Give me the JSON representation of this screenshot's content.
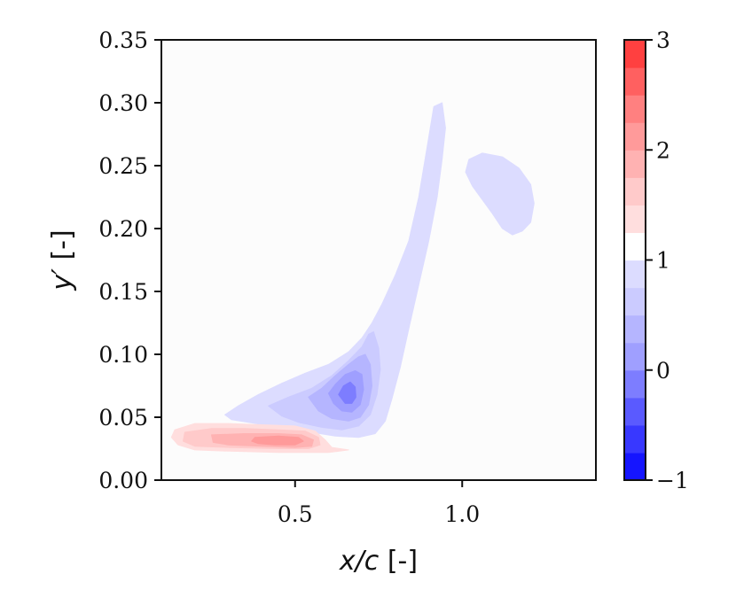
{
  "chart_data": {
    "type": "heatmap",
    "subtype": "filled-contour",
    "title": "",
    "xlabel_parts": [
      "x/c",
      " [-]"
    ],
    "ylabel_parts": [
      "y′",
      " [-]"
    ],
    "xlim": [
      0.1,
      1.4
    ],
    "ylim": [
      0.0,
      0.35
    ],
    "xticks": [
      0.5,
      1.0
    ],
    "xtick_labels": [
      "0.5",
      "1.0"
    ],
    "yticks": [
      0.0,
      0.05,
      0.1,
      0.15,
      0.2,
      0.25,
      0.3,
      0.35
    ],
    "ytick_labels": [
      "0.00",
      "0.05",
      "0.10",
      "0.15",
      "0.20",
      "0.25",
      "0.30",
      "0.35"
    ],
    "grid": false,
    "colormap": "bwr",
    "colorbar": {
      "range": [
        -1,
        3
      ],
      "ticks": [
        -1,
        0,
        1,
        2,
        3
      ],
      "tick_labels": [
        "−1",
        "0",
        "1",
        "2",
        "3"
      ],
      "levels": [
        -1.0,
        -0.75,
        -0.5,
        -0.25,
        0.0,
        0.25,
        0.5,
        0.75,
        1.0,
        1.25,
        1.5,
        1.75,
        2.0,
        2.25,
        2.5,
        2.75,
        3.0
      ],
      "colors": [
        "#1515ff",
        "#3838ff",
        "#5a5aff",
        "#7d7dff",
        "#9f9fff",
        "#b5b5ff",
        "#cbcbff",
        "#dcdcff",
        "#ffffff",
        "#ffdede",
        "#ffcaca",
        "#ffb2b2",
        "#ff9a9a",
        "#ff8080",
        "#ff6060",
        "#ff4040",
        "#ff1c1c"
      ]
    },
    "background_color": "#fcfcfc",
    "regions": [
      {
        "name": "low-region-main-level-1",
        "value_range": [
          0.75,
          1.0
        ],
        "color": "#dcdcff",
        "points": [
          [
            0.29,
            0.052
          ],
          [
            0.33,
            0.059
          ],
          [
            0.39,
            0.068
          ],
          [
            0.46,
            0.077
          ],
          [
            0.53,
            0.085
          ],
          [
            0.6,
            0.092
          ],
          [
            0.66,
            0.102
          ],
          [
            0.7,
            0.113
          ],
          [
            0.73,
            0.125
          ],
          [
            0.76,
            0.14
          ],
          [
            0.8,
            0.163
          ],
          [
            0.84,
            0.19
          ],
          [
            0.87,
            0.225
          ],
          [
            0.895,
            0.265
          ],
          [
            0.915,
            0.297
          ],
          [
            0.94,
            0.3
          ],
          [
            0.95,
            0.28
          ],
          [
            0.94,
            0.255
          ],
          [
            0.925,
            0.225
          ],
          [
            0.9,
            0.19
          ],
          [
            0.87,
            0.155
          ],
          [
            0.84,
            0.12
          ],
          [
            0.815,
            0.09
          ],
          [
            0.79,
            0.065
          ],
          [
            0.77,
            0.047
          ],
          [
            0.74,
            0.037
          ],
          [
            0.69,
            0.034
          ],
          [
            0.62,
            0.035
          ],
          [
            0.55,
            0.038
          ],
          [
            0.45,
            0.042
          ],
          [
            0.36,
            0.046
          ],
          [
            0.31,
            0.048
          ]
        ]
      },
      {
        "name": "low-region-upper-level-1",
        "value_range": [
          0.75,
          1.0
        ],
        "color": "#dcdcff",
        "points": [
          [
            1.01,
            0.245
          ],
          [
            1.02,
            0.255
          ],
          [
            1.06,
            0.26
          ],
          [
            1.12,
            0.257
          ],
          [
            1.17,
            0.248
          ],
          [
            1.205,
            0.235
          ],
          [
            1.215,
            0.22
          ],
          [
            1.205,
            0.205
          ],
          [
            1.18,
            0.198
          ],
          [
            1.15,
            0.195
          ],
          [
            1.12,
            0.2
          ],
          [
            1.09,
            0.212
          ],
          [
            1.06,
            0.223
          ],
          [
            1.03,
            0.234
          ]
        ]
      },
      {
        "name": "low-region-level-2",
        "value_range": [
          0.5,
          0.75
        ],
        "color": "#cbcbff",
        "points": [
          [
            0.42,
            0.059
          ],
          [
            0.48,
            0.066
          ],
          [
            0.55,
            0.073
          ],
          [
            0.61,
            0.083
          ],
          [
            0.66,
            0.095
          ],
          [
            0.7,
            0.106
          ],
          [
            0.72,
            0.116
          ],
          [
            0.735,
            0.118
          ],
          [
            0.75,
            0.105
          ],
          [
            0.755,
            0.088
          ],
          [
            0.745,
            0.068
          ],
          [
            0.725,
            0.052
          ],
          [
            0.69,
            0.043
          ],
          [
            0.64,
            0.04
          ],
          [
            0.58,
            0.042
          ],
          [
            0.51,
            0.046
          ],
          [
            0.46,
            0.051
          ]
        ]
      },
      {
        "name": "low-region-level-3",
        "value_range": [
          0.25,
          0.5
        ],
        "color": "#b5b5ff",
        "points": [
          [
            0.54,
            0.066
          ],
          [
            0.58,
            0.073
          ],
          [
            0.62,
            0.083
          ],
          [
            0.66,
            0.092
          ],
          [
            0.69,
            0.098
          ],
          [
            0.71,
            0.1
          ],
          [
            0.725,
            0.092
          ],
          [
            0.73,
            0.075
          ],
          [
            0.72,
            0.06
          ],
          [
            0.695,
            0.05
          ],
          [
            0.66,
            0.047
          ],
          [
            0.61,
            0.049
          ],
          [
            0.57,
            0.055
          ]
        ]
      },
      {
        "name": "low-region-level-4",
        "value_range": [
          0.0,
          0.25
        ],
        "color": "#9f9fff",
        "points": [
          [
            0.6,
            0.069
          ],
          [
            0.62,
            0.076
          ],
          [
            0.65,
            0.084
          ],
          [
            0.68,
            0.087
          ],
          [
            0.7,
            0.084
          ],
          [
            0.705,
            0.072
          ],
          [
            0.695,
            0.06
          ],
          [
            0.67,
            0.054
          ],
          [
            0.64,
            0.055
          ],
          [
            0.615,
            0.061
          ]
        ]
      },
      {
        "name": "low-region-level-5",
        "value_range": [
          -0.25,
          0.0
        ],
        "color": "#7d7dff",
        "points": [
          [
            0.63,
            0.068
          ],
          [
            0.645,
            0.075
          ],
          [
            0.665,
            0.078
          ],
          [
            0.68,
            0.074
          ],
          [
            0.682,
            0.066
          ],
          [
            0.67,
            0.061
          ],
          [
            0.65,
            0.061
          ]
        ]
      },
      {
        "name": "high-region-level-1",
        "value_range": [
          1.0,
          1.25
        ],
        "color": "#ffdede",
        "points": [
          [
            0.14,
            0.04
          ],
          [
            0.2,
            0.045
          ],
          [
            0.3,
            0.045
          ],
          [
            0.4,
            0.044
          ],
          [
            0.5,
            0.043
          ],
          [
            0.56,
            0.039
          ],
          [
            0.59,
            0.032
          ],
          [
            0.61,
            0.026
          ],
          [
            0.66,
            0.024
          ],
          [
            0.6,
            0.022
          ],
          [
            0.45,
            0.022
          ],
          [
            0.3,
            0.023
          ],
          [
            0.2,
            0.024
          ],
          [
            0.15,
            0.028
          ],
          [
            0.13,
            0.034
          ]
        ]
      },
      {
        "name": "high-region-level-2",
        "value_range": [
          1.25,
          1.5
        ],
        "color": "#ffcaca",
        "points": [
          [
            0.17,
            0.038
          ],
          [
            0.25,
            0.041
          ],
          [
            0.35,
            0.041
          ],
          [
            0.45,
            0.04
          ],
          [
            0.53,
            0.039
          ],
          [
            0.57,
            0.034
          ],
          [
            0.575,
            0.028
          ],
          [
            0.54,
            0.025
          ],
          [
            0.45,
            0.025
          ],
          [
            0.3,
            0.026
          ],
          [
            0.2,
            0.027
          ],
          [
            0.165,
            0.031
          ]
        ]
      },
      {
        "name": "high-region-level-3",
        "value_range": [
          1.5,
          1.75
        ],
        "color": "#ffb2b2",
        "points": [
          [
            0.25,
            0.036
          ],
          [
            0.35,
            0.037
          ],
          [
            0.45,
            0.037
          ],
          [
            0.52,
            0.036
          ],
          [
            0.555,
            0.032
          ],
          [
            0.55,
            0.027
          ],
          [
            0.5,
            0.026
          ],
          [
            0.4,
            0.027
          ],
          [
            0.3,
            0.028
          ],
          [
            0.255,
            0.03
          ]
        ]
      },
      {
        "name": "high-region-level-4",
        "value_range": [
          1.75,
          2.0
        ],
        "color": "#ff9a9a",
        "points": [
          [
            0.38,
            0.034
          ],
          [
            0.45,
            0.035
          ],
          [
            0.51,
            0.034
          ],
          [
            0.525,
            0.031
          ],
          [
            0.5,
            0.028
          ],
          [
            0.44,
            0.028
          ],
          [
            0.39,
            0.029
          ],
          [
            0.37,
            0.031
          ]
        ]
      }
    ]
  }
}
